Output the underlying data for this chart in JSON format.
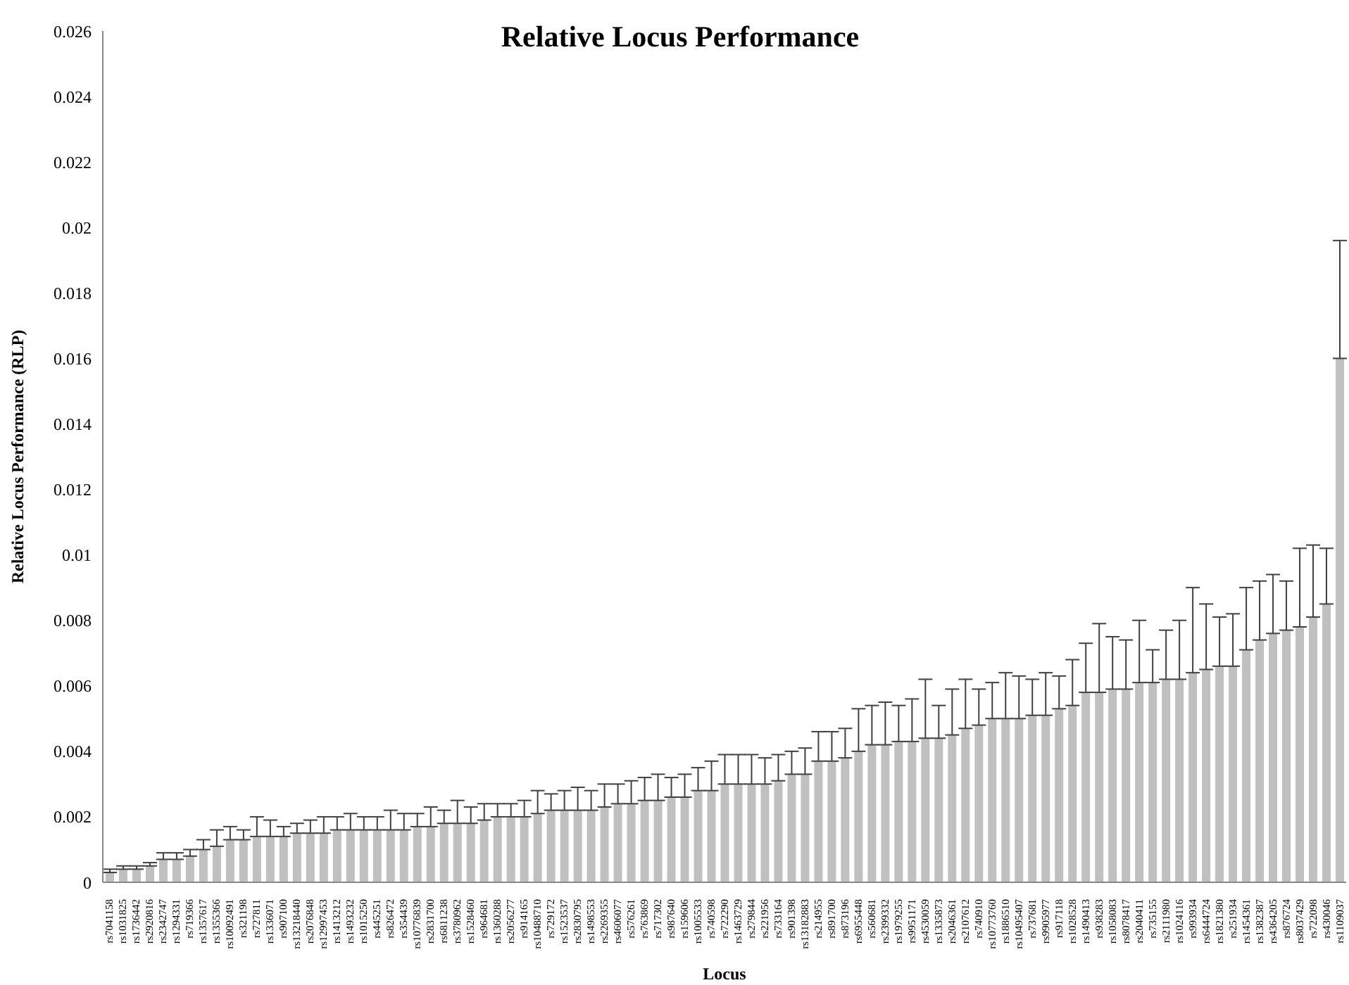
{
  "chart_data": {
    "type": "bar",
    "title": "Relative Locus Performance",
    "xlabel": "Locus",
    "ylabel": "Relative Locus Performance (RLP)",
    "color": "#c0c0c0",
    "categories": [
      "rs7041158",
      "rs1031825",
      "rs1736442",
      "rs2920816",
      "rs2342747",
      "rs1294331",
      "rs719366",
      "rs1357617",
      "rs1355366",
      "rs10092491",
      "rs321198",
      "rs727811",
      "rs1336071",
      "rs907100",
      "rs13218440",
      "rs2076848",
      "rs12997453",
      "rs1413212",
      "rs1493232",
      "rs1015250",
      "rs445251",
      "rs826472",
      "rs354439",
      "rs10776839",
      "rs2831700",
      "rs6811238",
      "rs3780962",
      "rs1528460",
      "rs964681",
      "rs1360288",
      "rs2056277",
      "rs914165",
      "rs10488710",
      "rs729172",
      "rs1523537",
      "rs2830795",
      "rs1498553",
      "rs2269355",
      "rs4606077",
      "rs576261",
      "rs763869",
      "rs717302",
      "rs987640",
      "rs159606",
      "rs1005533",
      "rs740598",
      "rs722290",
      "rs1463729",
      "rs279844",
      "rs221956",
      "rs733164",
      "rs901398",
      "rs13182883",
      "rs214955",
      "rs891700",
      "rs873196",
      "rs6955448",
      "rs560681",
      "rs2399332",
      "rs1979255",
      "rs9951171",
      "rs4530059",
      "rs1335873",
      "rs2046361",
      "rs2107612",
      "rs740910",
      "rs10773760",
      "rs1886510",
      "rs10495407",
      "rs737681",
      "rs9905977",
      "rs917118",
      "rs1028528",
      "rs1490413",
      "rs938283",
      "rs1058083",
      "rs8078417",
      "rs2040411",
      "rs735155",
      "rs2111980",
      "rs1024116",
      "rs993934",
      "rs6444724",
      "rs1821380",
      "rs251934",
      "rs1454361",
      "rs1382387",
      "rs4364205",
      "rs876724",
      "rs8037429",
      "rs722098",
      "rs430046",
      "rs1109037"
    ],
    "values": [
      0.0003,
      0.0004,
      0.0004,
      0.0005,
      0.0007,
      0.0007,
      0.0008,
      0.001,
      0.0011,
      0.0013,
      0.0013,
      0.0014,
      0.0014,
      0.0014,
      0.0015,
      0.0015,
      0.0015,
      0.0016,
      0.0016,
      0.0016,
      0.0016,
      0.0016,
      0.0016,
      0.0017,
      0.0017,
      0.0018,
      0.0018,
      0.0018,
      0.0019,
      0.002,
      0.002,
      0.002,
      0.0021,
      0.0022,
      0.0022,
      0.0022,
      0.0022,
      0.0023,
      0.0024,
      0.0024,
      0.0025,
      0.0025,
      0.0026,
      0.0026,
      0.0028,
      0.0028,
      0.003,
      0.003,
      0.003,
      0.003,
      0.0031,
      0.0033,
      0.0033,
      0.0037,
      0.0037,
      0.0038,
      0.004,
      0.0042,
      0.0042,
      0.0043,
      0.0043,
      0.0044,
      0.0044,
      0.0045,
      0.0047,
      0.0048,
      0.005,
      0.005,
      0.005,
      0.0051,
      0.0051,
      0.0053,
      0.0054,
      0.0058,
      0.0058,
      0.0059,
      0.0059,
      0.0061,
      0.0061,
      0.0062,
      0.0062,
      0.0064,
      0.0065,
      0.0066,
      0.0066,
      0.0071,
      0.0074,
      0.0076,
      0.0077,
      0.0078,
      0.0081,
      0.0085,
      0.016
    ],
    "errors": [
      [
        0.0003,
        0.0004
      ],
      [
        0.0004,
        0.0005
      ],
      [
        0.0004,
        0.0005
      ],
      [
        0.0005,
        0.0006
      ],
      [
        0.0007,
        0.0009
      ],
      [
        0.0007,
        0.0009
      ],
      [
        0.0008,
        0.001
      ],
      [
        0.001,
        0.0013
      ],
      [
        0.0011,
        0.0016
      ],
      [
        0.0013,
        0.0017
      ],
      [
        0.0013,
        0.0016
      ],
      [
        0.0014,
        0.002
      ],
      [
        0.0014,
        0.0019
      ],
      [
        0.0014,
        0.0017
      ],
      [
        0.0015,
        0.0018
      ],
      [
        0.0015,
        0.0019
      ],
      [
        0.0015,
        0.002
      ],
      [
        0.0016,
        0.002
      ],
      [
        0.0016,
        0.0021
      ],
      [
        0.0016,
        0.002
      ],
      [
        0.0016,
        0.002
      ],
      [
        0.0016,
        0.0022
      ],
      [
        0.0016,
        0.0021
      ],
      [
        0.0017,
        0.0021
      ],
      [
        0.0017,
        0.0023
      ],
      [
        0.0018,
        0.0022
      ],
      [
        0.0018,
        0.0025
      ],
      [
        0.0018,
        0.0023
      ],
      [
        0.0019,
        0.0024
      ],
      [
        0.002,
        0.0024
      ],
      [
        0.002,
        0.0024
      ],
      [
        0.002,
        0.0025
      ],
      [
        0.0021,
        0.0028
      ],
      [
        0.0022,
        0.0027
      ],
      [
        0.0022,
        0.0028
      ],
      [
        0.0022,
        0.0029
      ],
      [
        0.0022,
        0.0028
      ],
      [
        0.0023,
        0.003
      ],
      [
        0.0024,
        0.003
      ],
      [
        0.0024,
        0.0031
      ],
      [
        0.0025,
        0.0032
      ],
      [
        0.0025,
        0.0033
      ],
      [
        0.0026,
        0.0032
      ],
      [
        0.0026,
        0.0033
      ],
      [
        0.0028,
        0.0035
      ],
      [
        0.0028,
        0.0037
      ],
      [
        0.003,
        0.0039
      ],
      [
        0.003,
        0.0039
      ],
      [
        0.003,
        0.0039
      ],
      [
        0.003,
        0.0038
      ],
      [
        0.0031,
        0.0039
      ],
      [
        0.0033,
        0.004
      ],
      [
        0.0033,
        0.0041
      ],
      [
        0.0037,
        0.0046
      ],
      [
        0.0037,
        0.0046
      ],
      [
        0.0038,
        0.0047
      ],
      [
        0.004,
        0.0053
      ],
      [
        0.0042,
        0.0054
      ],
      [
        0.0042,
        0.0055
      ],
      [
        0.0043,
        0.0054
      ],
      [
        0.0043,
        0.0056
      ],
      [
        0.0044,
        0.0062
      ],
      [
        0.0044,
        0.0054
      ],
      [
        0.0045,
        0.0059
      ],
      [
        0.0047,
        0.0062
      ],
      [
        0.0048,
        0.0059
      ],
      [
        0.005,
        0.0061
      ],
      [
        0.005,
        0.0064
      ],
      [
        0.005,
        0.0063
      ],
      [
        0.0051,
        0.0062
      ],
      [
        0.0051,
        0.0064
      ],
      [
        0.0053,
        0.0063
      ],
      [
        0.0054,
        0.0068
      ],
      [
        0.0058,
        0.0073
      ],
      [
        0.0058,
        0.0079
      ],
      [
        0.0059,
        0.0075
      ],
      [
        0.0059,
        0.0074
      ],
      [
        0.0061,
        0.008
      ],
      [
        0.0061,
        0.0071
      ],
      [
        0.0062,
        0.0077
      ],
      [
        0.0062,
        0.008
      ],
      [
        0.0064,
        0.009
      ],
      [
        0.0065,
        0.0085
      ],
      [
        0.0066,
        0.0081
      ],
      [
        0.0066,
        0.0082
      ],
      [
        0.0071,
        0.009
      ],
      [
        0.0074,
        0.0092
      ],
      [
        0.0076,
        0.0094
      ],
      [
        0.0077,
        0.0092
      ],
      [
        0.0078,
        0.0102
      ],
      [
        0.0081,
        0.0103
      ],
      [
        0.0085,
        0.0102
      ],
      [
        0.016,
        0.0196
      ]
    ],
    "ylim": [
      0,
      0.026
    ],
    "yticks": [
      0,
      0.002,
      0.004,
      0.006,
      0.008,
      0.01,
      0.012,
      0.014,
      0.016,
      0.018,
      0.02,
      0.022,
      0.024,
      0.026
    ],
    "grid": false
  }
}
